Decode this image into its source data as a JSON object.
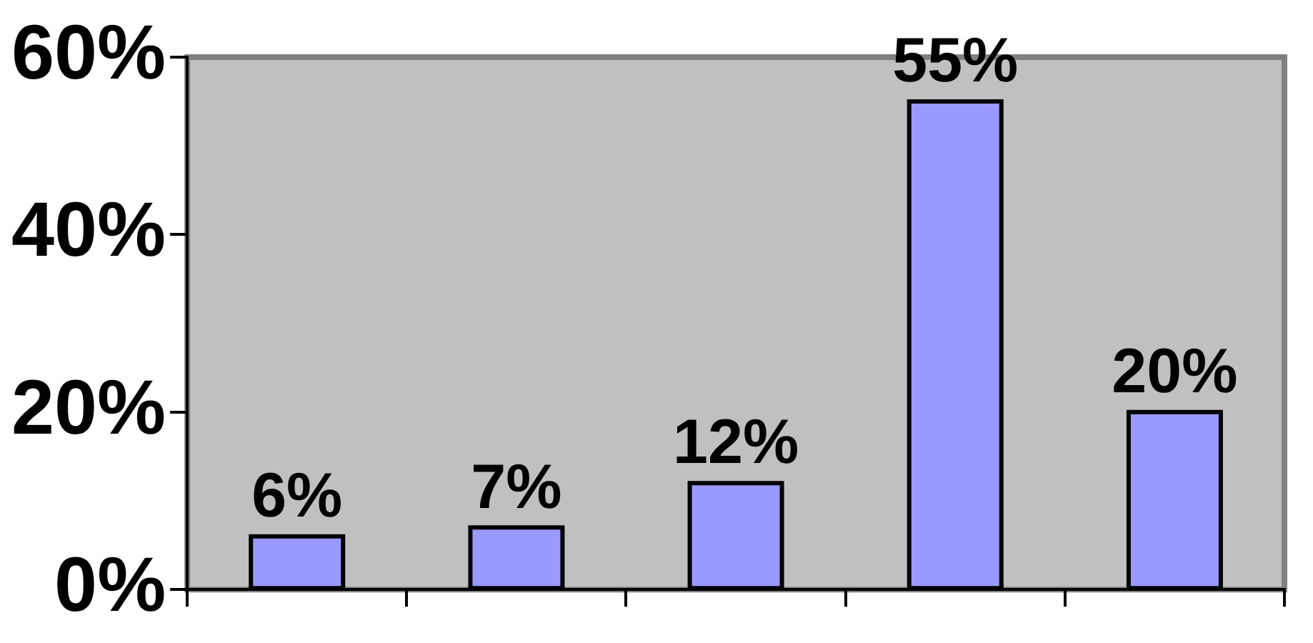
{
  "chart_data": {
    "type": "bar",
    "categories": [
      null,
      null,
      null,
      null,
      null
    ],
    "values": [
      6,
      7,
      12,
      55,
      20
    ],
    "color": "#9999ff",
    "value_labels": [
      "6%",
      "7%",
      "12%",
      "55%",
      "20%"
    ],
    "ylim": [
      0,
      60
    ],
    "yticks": [
      {
        "value": 0,
        "label": "0%"
      },
      {
        "value": 20,
        "label": "20%"
      },
      {
        "value": 40,
        "label": "40%"
      },
      {
        "value": 60,
        "label": "60%"
      }
    ],
    "grid": false,
    "legend": false
  }
}
